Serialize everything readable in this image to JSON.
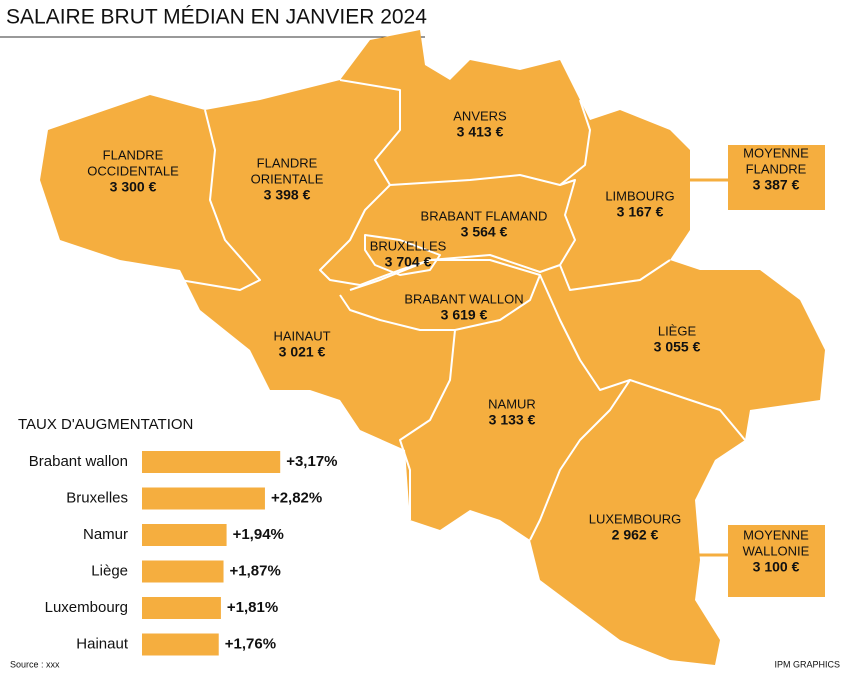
{
  "title": "SALAIRE  BRUT MÉDIAN EN JANVIER 2024",
  "regions": [
    {
      "name": [
        "FLANDRE",
        "OCCIDENTALE"
      ],
      "value": "3 300 €"
    },
    {
      "name": [
        "FLANDRE",
        "ORIENTALE"
      ],
      "value": "3 398 €"
    },
    {
      "name": [
        "ANVERS"
      ],
      "value": "3 413 €"
    },
    {
      "name": [
        "LIMBOURG"
      ],
      "value": "3 167 €"
    },
    {
      "name": [
        "BRABANT FLAMAND"
      ],
      "value": "3 564 €"
    },
    {
      "name": [
        "BRUXELLES"
      ],
      "value": "3 704 €"
    },
    {
      "name": [
        "BRABANT WALLON"
      ],
      "value": "3 619 €"
    },
    {
      "name": [
        "HAINAUT"
      ],
      "value": "3 021 €"
    },
    {
      "name": [
        "LIÈGE"
      ],
      "value": "3 055 €"
    },
    {
      "name": [
        "NAMUR"
      ],
      "value": "3 133 €"
    },
    {
      "name": [
        "LUXEMBOURG"
      ],
      "value": "2 962 €"
    }
  ],
  "averages": [
    {
      "name": [
        "MOYENNE",
        "FLANDRE"
      ],
      "value": "3 387 €"
    },
    {
      "name": [
        "MOYENNE",
        "WALLONIE"
      ],
      "value": "3 100 €"
    }
  ],
  "chart_data": {
    "type": "bar",
    "title": "TAUX D'AUGMENTATION",
    "categories": [
      "Brabant wallon",
      "Bruxelles",
      "Namur",
      "Liège",
      "Luxembourg",
      "Hainaut"
    ],
    "values": [
      3.17,
      2.82,
      1.94,
      1.87,
      1.81,
      1.76
    ],
    "value_labels": [
      "+3,17%",
      "+2,82%",
      "+1,94%",
      "+1,87%",
      "+1,81%",
      "+1,76%"
    ],
    "color": "#f5ae3f"
  },
  "source": "Source : xxx",
  "credit": "IPM GRAPHICS"
}
